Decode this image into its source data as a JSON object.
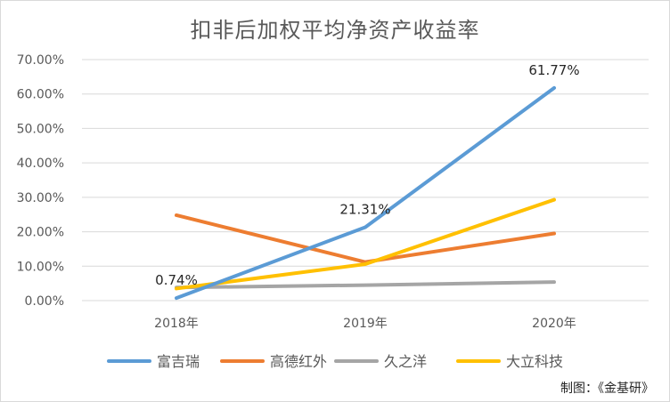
{
  "chart_data": {
    "type": "line",
    "title": "扣非后加权平均净资产收益率",
    "categories": [
      "2018年",
      "2019年",
      "2020年"
    ],
    "y_ticks": [
      "0.00%",
      "10.00%",
      "20.00%",
      "30.00%",
      "40.00%",
      "50.00%",
      "60.00%",
      "70.00%"
    ],
    "ylim": [
      0,
      70
    ],
    "grid": true,
    "legend_position": "bottom",
    "series": [
      {
        "name": "富吉瑞",
        "color": "#5b9bd5",
        "values": [
          0.74,
          21.31,
          61.77
        ],
        "labels": [
          "0.74%",
          "21.31%",
          "61.77%"
        ]
      },
      {
        "name": "高德红外",
        "color": "#ed7d31",
        "values": [
          24.8,
          11.2,
          19.5
        ]
      },
      {
        "name": "久之洋",
        "color": "#a5a5a5",
        "values": [
          3.8,
          4.5,
          5.4
        ]
      },
      {
        "name": "大立科技",
        "color": "#ffc000",
        "values": [
          3.5,
          10.6,
          29.3
        ]
      }
    ]
  },
  "footer": {
    "credit": "制图：《金基研》"
  }
}
